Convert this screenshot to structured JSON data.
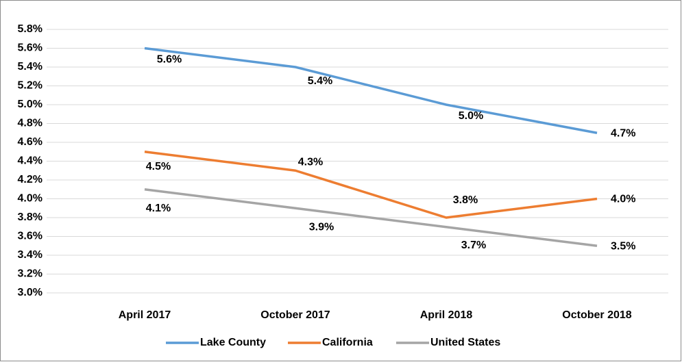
{
  "chart_data": {
    "type": "line",
    "categories": [
      "April 2017",
      "October 2017",
      "April 2018",
      "October 2018"
    ],
    "series": [
      {
        "name": "Lake County",
        "color": "#5b9bd5",
        "values": [
          5.6,
          5.4,
          5.0,
          4.7
        ],
        "value_labels": [
          "5.6%",
          "5.4%",
          "5.0%",
          "4.7%"
        ]
      },
      {
        "name": "California",
        "color": "#ed7d31",
        "values": [
          4.5,
          4.3,
          3.8,
          4.0
        ],
        "value_labels": [
          "4.5%",
          "4.3%",
          "3.8%",
          "4.0%"
        ]
      },
      {
        "name": "United States",
        "color": "#a5a5a5",
        "values": [
          4.1,
          3.9,
          3.7,
          3.5
        ],
        "value_labels": [
          "4.1%",
          "3.9%",
          "3.7%",
          "3.5%"
        ]
      }
    ],
    "ylim": [
      3.0,
      5.8
    ],
    "yticks": [
      {
        "value": 3.0,
        "label": "3.0%"
      },
      {
        "value": 3.2,
        "label": "3.2%"
      },
      {
        "value": 3.4,
        "label": "3.4%"
      },
      {
        "value": 3.6,
        "label": "3.6%"
      },
      {
        "value": 3.8,
        "label": "3.8%"
      },
      {
        "value": 4.0,
        "label": "4.0%"
      },
      {
        "value": 4.2,
        "label": "4.2%"
      },
      {
        "value": 4.4,
        "label": "4.4%"
      },
      {
        "value": 4.6,
        "label": "4.6%"
      },
      {
        "value": 4.8,
        "label": "4.8%"
      },
      {
        "value": 5.0,
        "label": "5.0%"
      },
      {
        "value": 5.2,
        "label": "5.2%"
      },
      {
        "value": 5.4,
        "label": "5.4%"
      },
      {
        "value": 5.6,
        "label": "5.6%"
      },
      {
        "value": 5.8,
        "label": "5.8%"
      }
    ],
    "grid": true,
    "legend": "bottom"
  }
}
